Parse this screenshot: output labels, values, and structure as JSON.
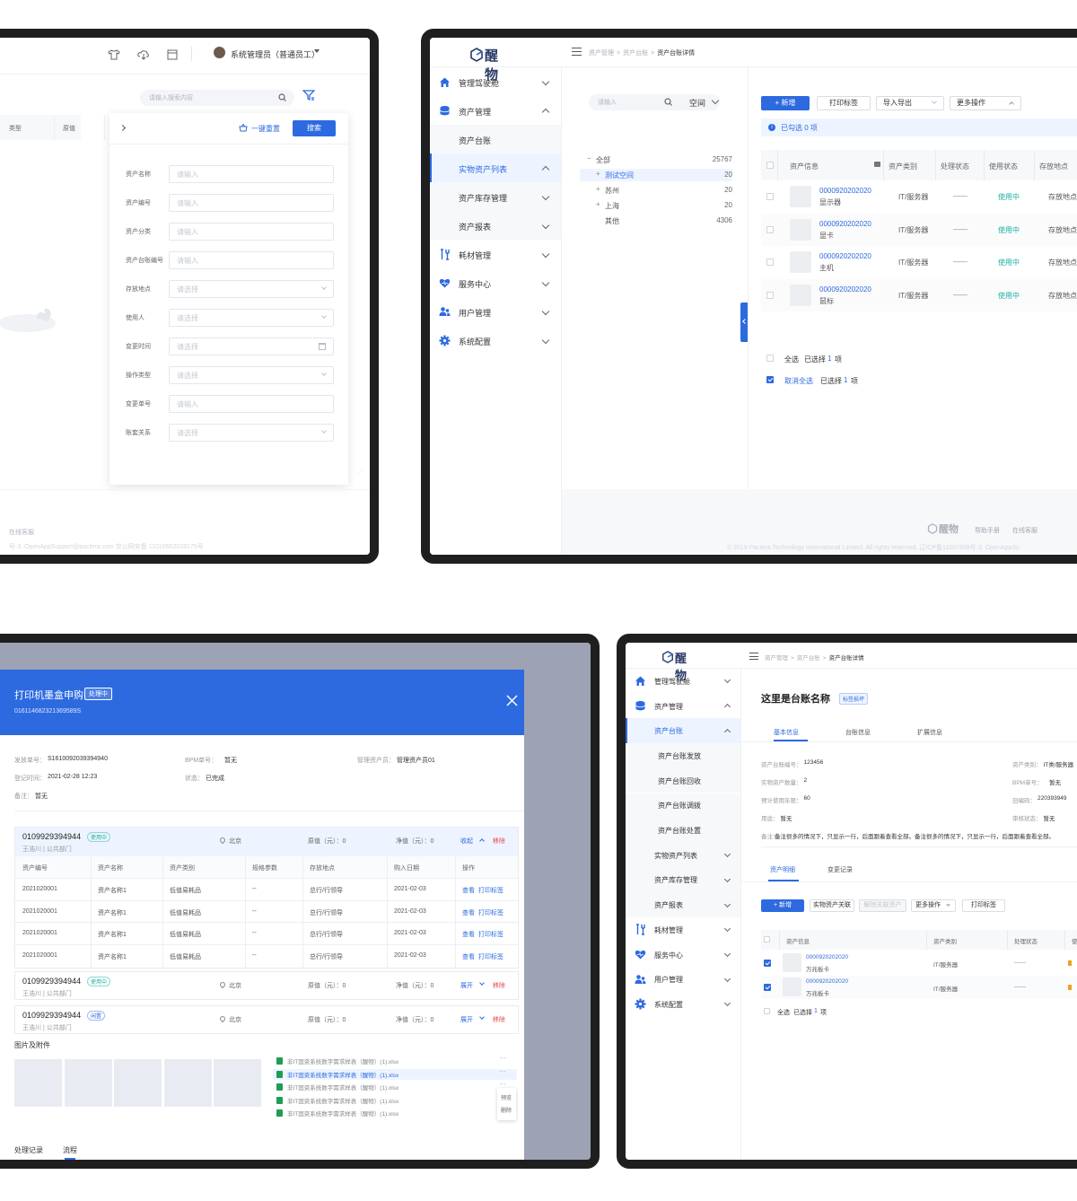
{
  "colors": {
    "accent": "#2d6ae0",
    "frame": "#1f1f1f",
    "used": "#19b3a4",
    "remove": "#e5484d"
  },
  "s1": {
    "user": "系统管理员（普通员工）",
    "search_placeholder": "请输入搜索内容",
    "col_type": "类型",
    "col_original": "原值",
    "reset": "一键重置",
    "search": "搜索",
    "fields": [
      {
        "label": "资产名称",
        "placeholder": "请输入",
        "kind": "input"
      },
      {
        "label": "资产编号",
        "placeholder": "请输入",
        "kind": "input"
      },
      {
        "label": "资产分类",
        "placeholder": "请输入",
        "kind": "input"
      },
      {
        "label": "资产台账编号",
        "placeholder": "请输入",
        "kind": "input"
      },
      {
        "label": "存放地点",
        "placeholder": "请选择",
        "kind": "select"
      },
      {
        "label": "使用人",
        "placeholder": "请选择",
        "kind": "select"
      },
      {
        "label": "变更时间",
        "placeholder": "请选择",
        "kind": "date"
      },
      {
        "label": "操作类型",
        "placeholder": "请选择",
        "kind": "select"
      },
      {
        "label": "变更单号",
        "placeholder": "请输入",
        "kind": "input"
      },
      {
        "label": "账套关系",
        "placeholder": "请选择",
        "kind": "select"
      }
    ],
    "footer_service": "在线客服",
    "footer_copy": "号-3. OpenAppSupport@pactera.com 京公网安备 11010602028175号"
  },
  "s2": {
    "logo": "醒物",
    "breadcrumb": [
      "资产管理",
      ">",
      "资产台账",
      ">",
      "资产台账详情"
    ],
    "sidebar": [
      {
        "label": "管理驾驶舱",
        "icon": "home-icon",
        "chev": "down"
      },
      {
        "label": "资产管理",
        "icon": "database-icon",
        "chev": "up"
      },
      {
        "label": "资产台账",
        "sub": true
      },
      {
        "label": "实物资产列表",
        "sub": true,
        "active": true,
        "chev": "up"
      },
      {
        "label": "资产库存管理",
        "sub": true,
        "chev": "down"
      },
      {
        "label": "资产报表",
        "sub": true,
        "chev": "down"
      },
      {
        "label": "耗材管理",
        "icon": "tools-icon",
        "chev": "down"
      },
      {
        "label": "服务中心",
        "icon": "heart-icon",
        "chev": "down"
      },
      {
        "label": "用户管理",
        "icon": "users-icon",
        "chev": "down"
      },
      {
        "label": "系统配置",
        "icon": "gear-icon",
        "chev": "down"
      }
    ],
    "tree_search": "请输入",
    "space": "空间",
    "tree": [
      {
        "name": "全部",
        "count": "25767",
        "prefix": "−"
      },
      {
        "name": "测试空间",
        "count": "20",
        "prefix": "+",
        "selected": true
      },
      {
        "name": "苏州",
        "count": "20",
        "prefix": "+"
      },
      {
        "name": "上海",
        "count": "20",
        "prefix": "+"
      },
      {
        "name": "其他",
        "count": "4306",
        "prefix": ""
      }
    ],
    "btn_add": "+ 新增",
    "btn_print": "打印标签",
    "btn_export": "导入导出",
    "btn_more": "更多操作",
    "selected_info": "已勾选 0 项",
    "cols": [
      "资产信息",
      "资产类别",
      "处理状态",
      "使用状态",
      "存放地点"
    ],
    "rows": [
      {
        "code": "0000920202020",
        "name": "显示器",
        "cat": "IT/服务器",
        "state": "——",
        "use": "使用中",
        "loc": "存放地点"
      },
      {
        "code": "0000920202020",
        "name": "显卡",
        "cat": "IT/服务器",
        "state": "——",
        "use": "使用中",
        "loc": "存放地点"
      },
      {
        "code": "0000920202020",
        "name": "主机",
        "cat": "IT/服务器",
        "state": "——",
        "use": "使用中",
        "loc": "存放地点"
      },
      {
        "code": "0000920202020",
        "name": "鼠标",
        "cat": "IT/服务器",
        "state": "——",
        "use": "使用中",
        "loc": "存放地点"
      }
    ],
    "select_all": "全选",
    "selected_1": "已选择",
    "n1": "1",
    "item_unit": "项",
    "cancel_all": "取消全选",
    "footer_help": "帮助手册",
    "footer_service": "在线客服",
    "footer_copy": "© 2019 Pactera Technology International Limited. All rights reserved. 辽ICP备11007858号-3. OpenAppSu"
  },
  "s3": {
    "title": "打印机墨盒申购",
    "status": "处理中",
    "order_no": "016114682321369589S",
    "info": [
      {
        "label": "发放单号：",
        "value": "S1610092039394940"
      },
      {
        "label": "BPM单号：",
        "value": "暂无"
      },
      {
        "label": "管理资产员：",
        "value": "管理资产员01"
      },
      {
        "label": "登记时间：",
        "value": "2021-02-28 12:23"
      },
      {
        "label": "状态：",
        "value": "已完成"
      },
      {
        "label": "备注：",
        "value": "暂无"
      }
    ],
    "groups": [
      {
        "code": "0109929394944",
        "tag": "使用中",
        "owner": "王浩川 | 公共部门",
        "loc": "北京",
        "orig": "原值（元）：0",
        "net": "净值（元）：0",
        "toggle": "收起",
        "remove": "移除"
      },
      {
        "code": "0109929394944",
        "tag": "使用中",
        "owner": "王浩川 | 公共部门",
        "loc": "北京",
        "orig": "原值（元）：0",
        "net": "净值（元）：0",
        "toggle": "展开",
        "remove": "移除"
      },
      {
        "code": "0109929394944",
        "tag": "闲置",
        "owner": "王浩川 | 公共部门",
        "loc": "北京",
        "orig": "原值（元）：0",
        "net": "净值（元）：0",
        "toggle": "展开",
        "remove": "移除"
      }
    ],
    "cols": [
      "资产编号",
      "资产名称",
      "资产类别",
      "规格参数",
      "存放地点",
      "购入日期",
      "操作"
    ],
    "rows": [
      [
        "2021020001",
        "资产名称1",
        "低值易耗品",
        "--",
        "总行/行领导",
        "2021-02-03"
      ],
      [
        "2021020001",
        "资产名称1",
        "低值易耗品",
        "--",
        "总行/行领导",
        "2021-02-03"
      ],
      [
        "2021020001",
        "资产名称1",
        "低值易耗品",
        "--",
        "总行/行领导",
        "2021-02-03"
      ],
      [
        "2021020001",
        "资产名称1",
        "低值易耗品",
        "--",
        "总行/行领导",
        "2021-02-03"
      ]
    ],
    "act_view": "查看",
    "act_print": "打印标签",
    "attach_title": "图片及附件",
    "files": [
      "非IT固资系统数字需求样表（醒物）(1).xlsx",
      "非IT固资系统数字需求样表（醒物）(1).xlsx",
      "非IT固资系统数字需求样表（醒物）(1).xlsx",
      "非IT固资系统数字需求样表（醒物）(1).xlsx",
      "非IT固资系统数字需求样表（醒物）(1).xlsx"
    ],
    "menu_preview": "预览",
    "menu_delete": "删除",
    "tab_records": "处理记录",
    "tab_flow": "流程"
  },
  "s4": {
    "logo": "醒物",
    "breadcrumb": [
      "资产管理",
      ">",
      "资产台账",
      ">",
      "资产台账详情"
    ],
    "sidebar": [
      {
        "label": "管理驾驶舱",
        "icon": "home-icon",
        "chev": "down"
      },
      {
        "label": "资产管理",
        "icon": "database-icon",
        "chev": "up"
      },
      {
        "label": "资产台账",
        "sub": true,
        "active": true,
        "chev": "up"
      },
      {
        "label": "资产台账发放",
        "sub2": true
      },
      {
        "label": "资产台账回收",
        "sub2": true
      },
      {
        "label": "资产台账调拨",
        "sub2": true
      },
      {
        "label": "资产台账处置",
        "sub2": true
      },
      {
        "label": "实物资产列表",
        "sub": true,
        "chev": "down"
      },
      {
        "label": "资产库存管理",
        "sub": true,
        "chev": "down"
      },
      {
        "label": "资产报表",
        "sub": true,
        "chev": "down"
      },
      {
        "label": "耗材管理",
        "icon": "tools-icon",
        "chev": "down"
      },
      {
        "label": "服务中心",
        "icon": "heart-icon",
        "chev": "down"
      },
      {
        "label": "用户管理",
        "icon": "users-icon",
        "chev": "down"
      },
      {
        "label": "系统配置",
        "icon": "gear-icon",
        "chev": "down"
      }
    ],
    "title": "这里是台账名称",
    "badge": "标签损坏",
    "tabs": [
      "基本信息",
      "台账信息",
      "扩展信息"
    ],
    "info_left": [
      {
        "label": "资产台账编号：",
        "value": "123456"
      },
      {
        "label": "实物资产数量：",
        "value": "2"
      },
      {
        "label": "预计使用年限：",
        "value": "60"
      },
      {
        "label": "用途：",
        "value": "暂无"
      }
    ],
    "info_right": [
      {
        "label": "资产类别：",
        "value": "IT类/服务器"
      },
      {
        "label": "BPM单号：",
        "value": "暂无"
      },
      {
        "label": "旧编码：",
        "value": "220393949"
      },
      {
        "label": "审核状态：",
        "value": "暂无"
      }
    ],
    "note_label": "备注：",
    "note": "备注很多的情况下，只显示一行，后面跟着查看全部。备注很多的情况下，只显示一行，后面跟着查看全部。",
    "sub_tabs": [
      "资产明细",
      "变更记录"
    ],
    "btn_add": "+ 新增",
    "btn_link": "实物资产关联",
    "btn_unlink": "解除关联资产",
    "btn_more": "更多操作",
    "btn_print": "打印标签",
    "cols": [
      "资产信息",
      "资产类别",
      "处理状态",
      "使"
    ],
    "rows": [
      {
        "code": "0000920202020",
        "name": "万兆板卡",
        "cat": "IT/服务器",
        "state": "——"
      },
      {
        "code": "0000920202020",
        "name": "万兆板卡",
        "cat": "IT/服务器",
        "state": "——"
      }
    ],
    "select_all": "全选",
    "selected": "已选择",
    "n1": "1",
    "item_unit": "项"
  }
}
